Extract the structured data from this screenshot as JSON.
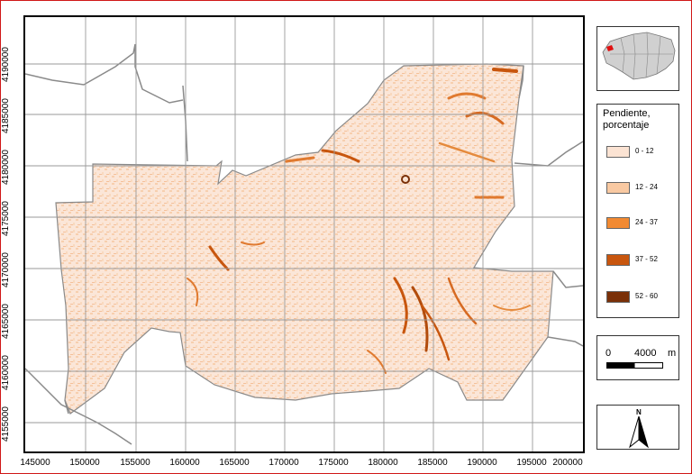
{
  "legend": {
    "title_line1": "Pendiente,",
    "title_line2": "porcentaje",
    "classes": [
      {
        "label": "0 - 12",
        "color": "#fbe3d3"
      },
      {
        "label": "12 - 24",
        "color": "#f9c9a2"
      },
      {
        "label": "24 - 37",
        "color": "#f28a32"
      },
      {
        "label": "37 - 52",
        "color": "#c8560e"
      },
      {
        "label": "52 - 60",
        "color": "#7a3008"
      }
    ]
  },
  "scale_bar": {
    "start": "0",
    "end": "4000",
    "unit": "m"
  },
  "north_arrow": {
    "label": "N"
  },
  "axes": {
    "x_ticks": [
      "145000",
      "150000",
      "155000",
      "160000",
      "165000",
      "170000",
      "175000",
      "180000",
      "185000",
      "190000",
      "195000",
      "200000"
    ],
    "y_ticks": [
      "4155000",
      "4160000",
      "4165000",
      "4170000",
      "4175000",
      "4180000",
      "4185000",
      "4190000"
    ]
  },
  "colors": {
    "boundary_line": "#8a8a8a",
    "grid_line": "#9a9a9a",
    "locator_highlight": "#e01010",
    "locator_region": "#d0d0d0"
  }
}
